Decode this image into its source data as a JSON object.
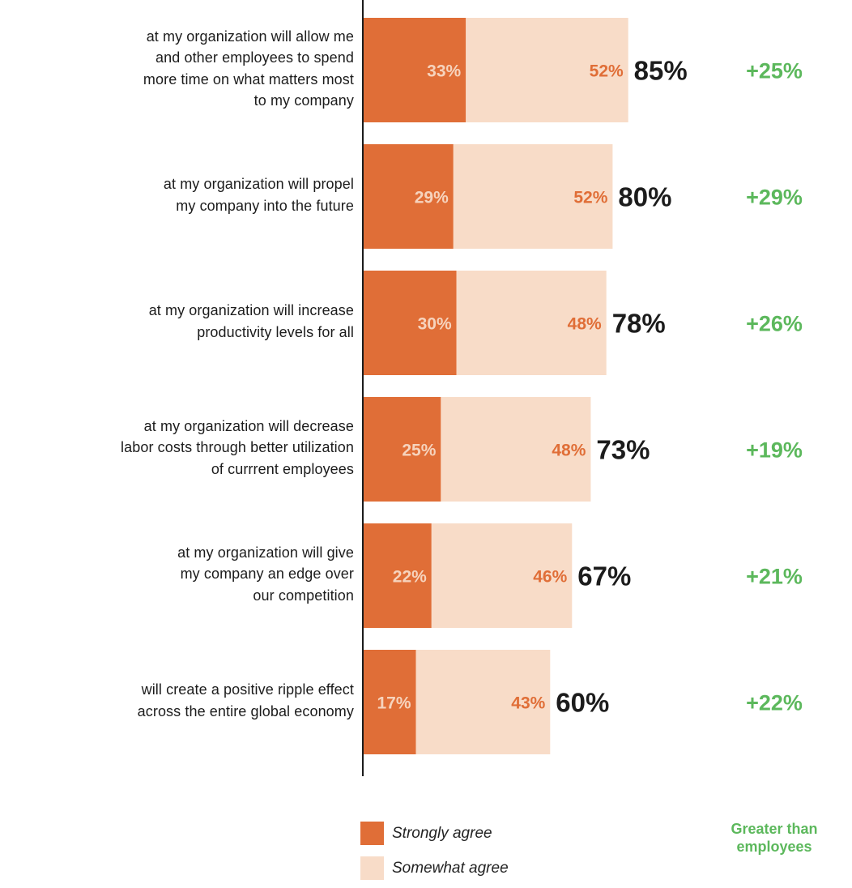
{
  "chart_data": {
    "type": "bar",
    "orientation": "horizontal",
    "stacked": true,
    "categories": [
      "at my organization will allow me and other employees to spend more time on what matters most to my company",
      "at my organization will propel my company into the future",
      "at my organization will increase productivity levels for all",
      "at my organization will decrease labor costs through better utilization of currrent employees",
      "at my organization will give my company an edge over our competition",
      "will create a positive ripple effect across the entire global economy"
    ],
    "category_lines": [
      [
        "at my organization will allow me",
        "and other employees to spend",
        "more time on what matters most",
        "to my company"
      ],
      [
        "at my organization will propel",
        "my company into the future"
      ],
      [
        "at my organization will increase",
        "productivity levels for all"
      ],
      [
        "at my organization will decrease",
        "labor costs through better utilization",
        "of currrent employees"
      ],
      [
        "at my organization will give",
        "my company an edge over",
        "our competition"
      ],
      [
        "will create a positive ripple effect",
        "across the entire global economy"
      ]
    ],
    "series": [
      {
        "name": "Strongly agree",
        "color": "#e06e37",
        "values": [
          33,
          29,
          30,
          25,
          22,
          17
        ],
        "labels": [
          "33%",
          "29%",
          "30%",
          "25%",
          "22%",
          "17%"
        ]
      },
      {
        "name": "Somewhat agree",
        "color": "#f8dcc8",
        "values": [
          52,
          52,
          48,
          48,
          46,
          43
        ],
        "labels": [
          "52%",
          "52%",
          "48%",
          "48%",
          "46%",
          "43%"
        ]
      }
    ],
    "totals": [
      85,
      80,
      78,
      73,
      67,
      60
    ],
    "total_labels": [
      "85%",
      "80%",
      "78%",
      "73%",
      "67%",
      "60%"
    ],
    "difference_labels": [
      "+25%",
      "+29%",
      "+26%",
      "+19%",
      "+21%",
      "+22%"
    ],
    "difference_legend_lines": [
      "Greater than",
      "employees"
    ],
    "xlim": [
      0,
      100
    ],
    "colors": {
      "strong": "#e06e37",
      "somewhat": "#f8dcc8",
      "strong_label": "#f6d3bd",
      "somewhat_label": "#e06e37",
      "total": "#1c1c1c",
      "difference": "#5cb85c",
      "axis": "#1c1c1c"
    }
  }
}
